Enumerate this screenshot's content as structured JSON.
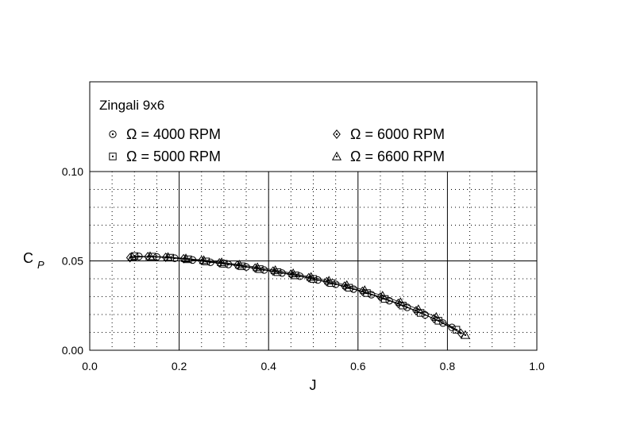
{
  "chart_data": {
    "type": "scatter",
    "title": "Zingali 9x6",
    "xlabel": "J",
    "ylabel": {
      "main": "C",
      "sub": "P"
    },
    "xlim": [
      0.0,
      1.0
    ],
    "ylim": [
      0.0,
      0.1
    ],
    "x_ticks": [
      "0.0",
      "0.2",
      "0.4",
      "0.6",
      "0.8",
      "1.0"
    ],
    "y_ticks": [
      "0.00",
      "0.05",
      "0.10"
    ],
    "grid": "dotted minor, solid major",
    "legend_position": "top (inside frame)",
    "series": [
      {
        "name": "Ω = 4000 RPM",
        "marker": "circle-dot",
        "x": [
          0.11,
          0.15,
          0.19,
          0.23,
          0.27,
          0.31,
          0.35,
          0.39,
          0.43,
          0.47,
          0.51,
          0.55,
          0.59,
          0.63,
          0.67,
          0.71,
          0.75,
          0.79,
          0.81
        ],
        "y": [
          0.0525,
          0.0522,
          0.0515,
          0.0505,
          0.0492,
          0.048,
          0.0466,
          0.0449,
          0.0432,
          0.0414,
          0.0393,
          0.0369,
          0.0342,
          0.0311,
          0.0277,
          0.024,
          0.0198,
          0.0152,
          0.0128
        ]
      },
      {
        "name": "Ω = 5000 RPM",
        "marker": "square-dot",
        "x": [
          0.1,
          0.14,
          0.18,
          0.22,
          0.26,
          0.3,
          0.34,
          0.38,
          0.42,
          0.46,
          0.5,
          0.54,
          0.58,
          0.62,
          0.66,
          0.7,
          0.74,
          0.78,
          0.82
        ],
        "y": [
          0.0527,
          0.0524,
          0.0518,
          0.0509,
          0.0497,
          0.0484,
          0.047,
          0.0454,
          0.0437,
          0.0419,
          0.0399,
          0.0376,
          0.035,
          0.032,
          0.0287,
          0.025,
          0.0209,
          0.0165,
          0.0115
        ]
      },
      {
        "name": "Ω = 6000 RPM",
        "marker": "diamond-dot",
        "x": [
          0.09,
          0.13,
          0.17,
          0.21,
          0.25,
          0.29,
          0.33,
          0.37,
          0.41,
          0.45,
          0.49,
          0.53,
          0.57,
          0.61,
          0.65,
          0.69,
          0.73,
          0.77,
          0.83
        ],
        "y": [
          0.0518,
          0.0524,
          0.052,
          0.0512,
          0.0502,
          0.0489,
          0.0476,
          0.046,
          0.0443,
          0.0426,
          0.0406,
          0.0384,
          0.0359,
          0.033,
          0.0298,
          0.0262,
          0.0221,
          0.0177,
          0.0095
        ]
      },
      {
        "name": "Ω = 6600 RPM",
        "marker": "triangle-dot",
        "x": [
          0.095,
          0.135,
          0.175,
          0.215,
          0.255,
          0.295,
          0.335,
          0.375,
          0.415,
          0.455,
          0.495,
          0.535,
          0.575,
          0.615,
          0.655,
          0.695,
          0.735,
          0.775,
          0.84
        ],
        "y": [
          0.0522,
          0.0526,
          0.0522,
          0.0514,
          0.0504,
          0.0492,
          0.0479,
          0.0464,
          0.0448,
          0.043,
          0.041,
          0.0389,
          0.0364,
          0.0336,
          0.0305,
          0.0269,
          0.0229,
          0.0186,
          0.0085
        ]
      }
    ]
  }
}
